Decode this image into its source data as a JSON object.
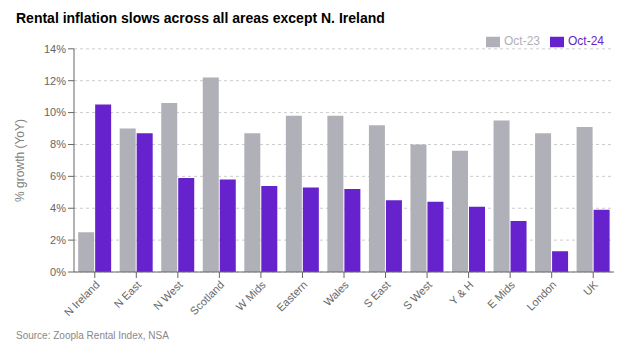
{
  "chart_data": {
    "type": "bar",
    "title": "Rental inflation slows across all areas except N. Ireland",
    "ylabel": "% growth (YoY)",
    "annotations": [
      "Source: Zoopla Rental Index, NSA"
    ],
    "categories": [
      "N Ireland",
      "N East",
      "N West",
      "Scotland",
      "W Mids",
      "Eastern",
      "Wales",
      "S East",
      "S West",
      "Y & H",
      "E Mids",
      "London",
      "UK"
    ],
    "series": [
      {
        "name": "Oct-23",
        "color": "#b0b0b8",
        "values": [
          2.5,
          9.0,
          10.6,
          12.2,
          8.7,
          9.8,
          9.8,
          9.2,
          8.0,
          7.6,
          9.5,
          8.7,
          9.1
        ]
      },
      {
        "name": "Oct-24",
        "color": "#6622cc",
        "values": [
          10.5,
          8.7,
          5.9,
          5.8,
          5.4,
          5.3,
          5.2,
          4.5,
          4.4,
          4.1,
          3.2,
          1.3,
          3.9
        ]
      }
    ],
    "ylim": [
      0,
      14
    ],
    "yticks": [
      {
        "value": 0,
        "label": "0%"
      },
      {
        "value": 2,
        "label": "2%"
      },
      {
        "value": 4,
        "label": "4%"
      },
      {
        "value": 6,
        "label": "6%"
      },
      {
        "value": 8,
        "label": "8%"
      },
      {
        "value": 10,
        "label": "10%"
      },
      {
        "value": 12,
        "label": "12%"
      },
      {
        "value": 14,
        "label": "14%"
      }
    ],
    "grid": true,
    "legend": "upper right"
  }
}
